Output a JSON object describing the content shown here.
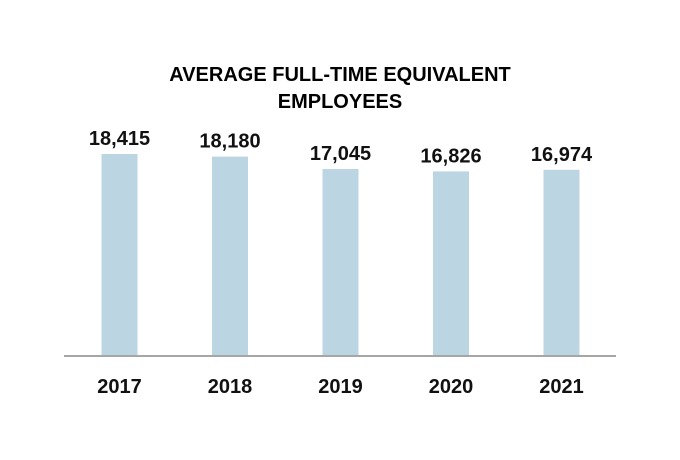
{
  "chart_data": {
    "type": "bar",
    "title_lines": [
      "AVERAGE FULL-TIME EQUIVALENT",
      "EMPLOYEES"
    ],
    "categories": [
      "2017",
      "2018",
      "2019",
      "2020",
      "2021"
    ],
    "values": [
      18415,
      18180,
      17045,
      16826,
      16974
    ],
    "value_labels": [
      "18,415",
      "18,180",
      "17,045",
      "16,826",
      "16,974"
    ],
    "xlabel": "",
    "ylabel": "",
    "ylim": [
      0,
      18415
    ],
    "grid": false,
    "legend": "none",
    "colors": {
      "bar": "#bcd5e2",
      "axis": "#a6a6a6",
      "text": "#111111"
    }
  }
}
